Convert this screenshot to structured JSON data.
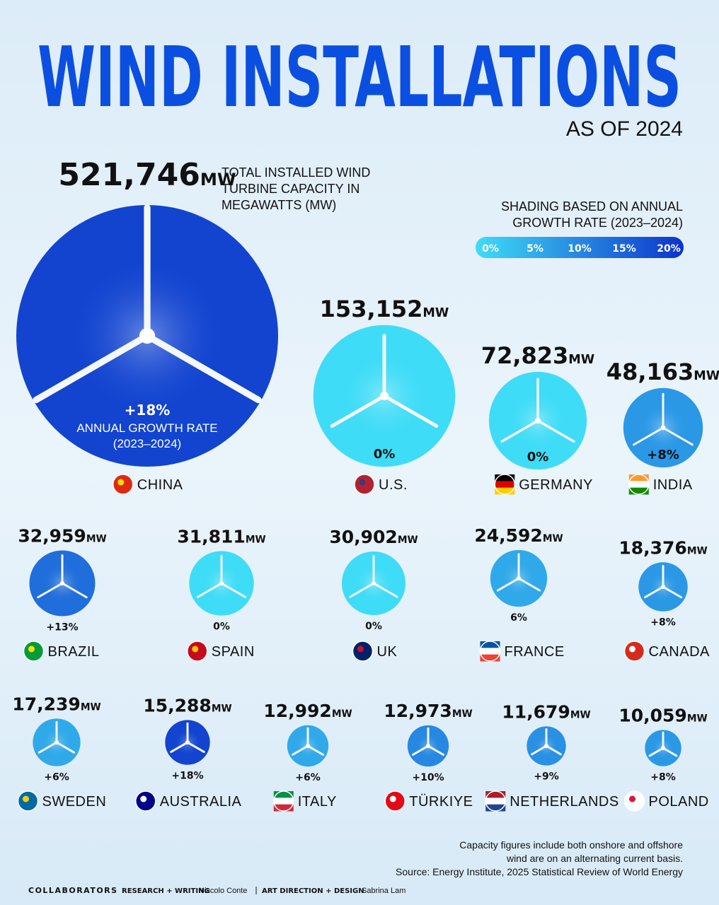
{
  "chart_data": {
    "type": "bubble",
    "title": "WIND INSTALLATIONS",
    "subtitle": "AS OF 2024",
    "unit": "MW",
    "size_label": [
      "TOTAL INSTALLED WIND",
      "TURBINE CAPACITY IN",
      "MEGAWATTS (MW)"
    ],
    "growth_caption": [
      "ANNUAL GROWTH RATE",
      "(2023–2024)"
    ],
    "categories": [
      "CHINA",
      "U.S.",
      "GERMANY",
      "INDIA",
      "BRAZIL",
      "SPAIN",
      "UK",
      "FRANCE",
      "CANADA",
      "SWEDEN",
      "AUSTRALIA",
      "ITALY",
      "TÜRKIYE",
      "NETHERLANDS",
      "POLAND"
    ],
    "values": [
      521746,
      153152,
      72823,
      48163,
      32959,
      31811,
      30902,
      24592,
      18376,
      17239,
      15288,
      12992,
      12973,
      11679,
      10059
    ],
    "value_labels": [
      "521,746",
      "153,152",
      "72,823",
      "48,163",
      "32,959",
      "31,811",
      "30,902",
      "24,592",
      "18,376",
      "17,239",
      "15,288",
      "12,992",
      "12,973",
      "11,679",
      "10,059"
    ],
    "growth": [
      18,
      0,
      0,
      8,
      13,
      0,
      0,
      6,
      8,
      6,
      18,
      6,
      10,
      9,
      8
    ],
    "growth_labels": [
      "+18%",
      "0%",
      "0%",
      "+8%",
      "+13%",
      "0%",
      "0%",
      "6%",
      "+8%",
      "+6%",
      "+18%",
      "+6%",
      "+10%",
      "+9%",
      "+8%"
    ],
    "color_legend": {
      "title": [
        "SHADING BASED ON ANNUAL",
        "GROWTH RATE (2023–2024)"
      ],
      "colors": [
        "#3fdcf7",
        "#0d33cc"
      ],
      "range": [
        0,
        20
      ],
      "ticks": [
        {
          "value": 0,
          "label": "0%"
        },
        {
          "value": 5,
          "label": "5%"
        },
        {
          "value": 10,
          "label": "10%"
        },
        {
          "value": 15,
          "label": "15%"
        },
        {
          "value": 20,
          "label": "20%"
        }
      ]
    },
    "notes": [
      "Capacity figures include both onshore and offshore",
      "wind are on an alternating current basis.",
      "Source: Energy Institute, 2025 Statistical Review of World Energy"
    ],
    "credits": {
      "label": "COLLABORATORS",
      "research_role": "RESEARCH + WRITING",
      "research_name": "Niccolo Conte",
      "design_role": "ART DIRECTION + DESIGN",
      "design_name": "Sabrina Lam"
    }
  }
}
